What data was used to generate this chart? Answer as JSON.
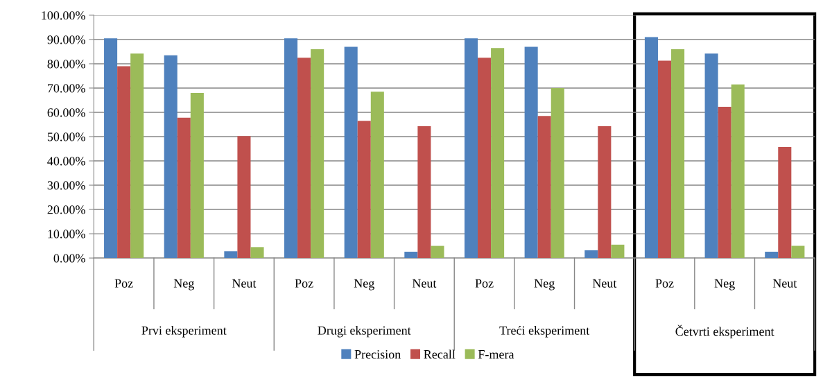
{
  "chart_data": {
    "type": "bar",
    "categories": [
      "Poz",
      "Neg",
      "Neut",
      "Poz",
      "Neg",
      "Neut",
      "Poz",
      "Neg",
      "Neut",
      "Poz",
      "Neg",
      "Neut"
    ],
    "annotations": [
      "Prvi eksperiment",
      "Drugi eksperiment",
      "Treći eksperiment",
      "Četvrti eksperiment"
    ],
    "series": [
      {
        "name": "Precision",
        "color": "#4f81bd",
        "values": [
          90.5,
          83.5,
          2.8,
          90.5,
          87,
          2.6,
          90.5,
          87,
          3.2,
          91,
          84.2,
          2.6
        ]
      },
      {
        "name": "Recall",
        "color": "#c0504d",
        "values": [
          79,
          57.8,
          50.2,
          82.5,
          56.5,
          54.3,
          82.5,
          58.5,
          54.3,
          81.3,
          62.3,
          45.7
        ]
      },
      {
        "name": "F-mera",
        "color": "#9bbb59",
        "values": [
          84.2,
          68,
          4.5,
          86,
          68.5,
          5,
          86.5,
          70,
          5.5,
          86,
          71.5,
          5
        ]
      }
    ],
    "ylim": [
      0,
      100
    ],
    "yticks": [
      {
        "value": 0,
        "label": "0.00%"
      },
      {
        "value": 10,
        "label": "10.00%"
      },
      {
        "value": 20,
        "label": "20.00%"
      },
      {
        "value": 30,
        "label": "30.00%"
      },
      {
        "value": 40,
        "label": "40.00%"
      },
      {
        "value": 50,
        "label": "50.00%"
      },
      {
        "value": 60,
        "label": "60.00%"
      },
      {
        "value": 70,
        "label": "70.00%"
      },
      {
        "value": 80,
        "label": "80.00%"
      },
      {
        "value": 90,
        "label": "90.00%"
      },
      {
        "value": 100,
        "label": "100.00%"
      }
    ],
    "grid": "y",
    "legend": "bottom"
  }
}
